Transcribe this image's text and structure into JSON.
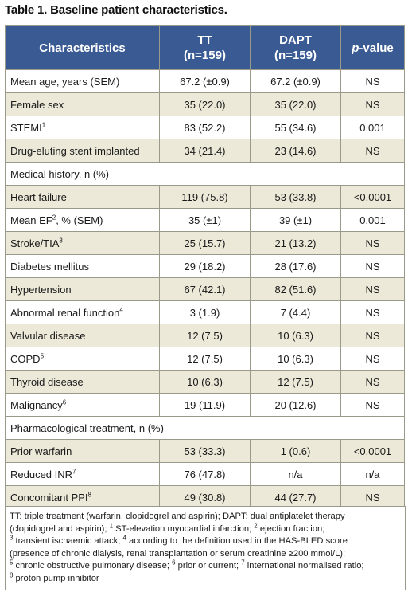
{
  "caption": "Table 1. Baseline patient characteristics.",
  "headers": {
    "characteristics": "Characteristics",
    "tt": "TT",
    "tt_n": "(n=159)",
    "dapt": "DAPT",
    "dapt_n": "(n=159)",
    "pvalue_italic": "p",
    "pvalue_rest": "-value"
  },
  "rows_top": [
    {
      "label": "Mean age, years (SEM)",
      "sup": "",
      "tt": "67.2 (±0.9)",
      "dapt": "67.2 (±0.9)",
      "p": "NS"
    },
    {
      "label": "Female sex",
      "sup": "",
      "tt": "35 (22.0)",
      "dapt": "35 (22.0)",
      "p": "NS"
    },
    {
      "label": "STEMI",
      "sup": "1",
      "tt": "83 (52.2)",
      "dapt": "55 (34.6)",
      "p": "0.001"
    },
    {
      "label": "Drug-eluting stent implanted",
      "sup": "",
      "tt": "34 (21.4)",
      "dapt": "23 (14.6)",
      "p": "NS"
    }
  ],
  "section_history": "Medical history, n (%)",
  "rows_history": [
    {
      "label": "Heart failure",
      "sup": "",
      "tt": "119 (75.8)",
      "dapt": "53 (33.8)",
      "p": "<0.0001"
    },
    {
      "label": " Mean EF",
      "sup": "2",
      "label_after": ", % (SEM)",
      "tt": "35 (±1)",
      "dapt": "39 (±1)",
      "p": "0.001"
    },
    {
      "label": "Stroke/TIA",
      "sup": "3",
      "tt": "25 (15.7)",
      "dapt": "21 (13.2)",
      "p": "NS"
    },
    {
      "label": "Diabetes mellitus",
      "sup": "",
      "tt": "29 (18.2)",
      "dapt": "28 (17.6)",
      "p": "NS"
    },
    {
      "label": "Hypertension",
      "sup": "",
      "tt": "67 (42.1)",
      "dapt": "82 (51.6)",
      "p": "NS"
    },
    {
      "label": "Abnormal renal function",
      "sup": "4",
      "tt": "3 (1.9)",
      "dapt": "7 (4.4)",
      "p": "NS"
    },
    {
      "label": "Valvular disease",
      "sup": "",
      "tt": "12 (7.5)",
      "dapt": "10 (6.3)",
      "p": "NS"
    },
    {
      "label": "COPD",
      "sup": "5",
      "tt": "12 (7.5)",
      "dapt": "10 (6.3)",
      "p": "NS"
    },
    {
      "label": "Thyroid disease",
      "sup": "",
      "tt": "10 (6.3)",
      "dapt": "12 (7.5)",
      "p": "NS"
    },
    {
      "label": "Malignancy",
      "sup": "6",
      "tt": "19 (11.9)",
      "dapt": "20 (12.6)",
      "p": "NS"
    }
  ],
  "section_pharm": "Pharmacological treatment, n (%)",
  "rows_pharm": [
    {
      "label": "Prior warfarin",
      "sup": "",
      "tt": "53 (33.3)",
      "dapt": "1 (0.6)",
      "p": "<0.0001"
    },
    {
      "label": "Reduced INR",
      "sup": "7",
      "tt": "76 (47.8)",
      "dapt": "n/a",
      "p": "n/a"
    },
    {
      "label": "Concomitant PPI",
      "sup": "8",
      "tt": "49 (30.8)",
      "dapt": "44 (27.7)",
      "p": "NS"
    }
  ],
  "footnote": {
    "line1": "TT: triple treatment (warfarin, clopidogrel and aspirin); DAPT: dual antiplatelet therapy",
    "line2": "(clopidogrel and aspirin); ",
    "n1": "1",
    "t1": " ST-elevation myocardial infarction; ",
    "n2": "2",
    "t2": " ejection fraction;",
    "n3": "3",
    "t3": " transient ischaemic attack; ",
    "n4": "4",
    "t4": " according to the definition used in the HAS-BLED score",
    "line4": "(presence of chronic dialysis, renal transplantation or serum creatinine ≥200 mmol/L);",
    "n5": "5",
    "t5": " chronic obstructive pulmonary disease; ",
    "n6": "6",
    "t6": " prior or current; ",
    "n7": "7",
    "t7": " international normalised ratio;",
    "n8": "8",
    "t8": " proton pump inhibitor"
  }
}
